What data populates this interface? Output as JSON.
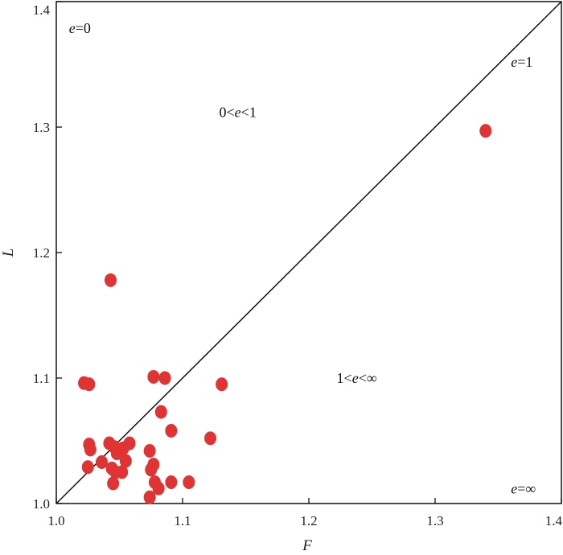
{
  "chart_data": {
    "type": "scatter",
    "title": "",
    "xlabel": "F",
    "ylabel": "L",
    "xlim": [
      1.0,
      1.4
    ],
    "ylim": [
      1.0,
      1.4
    ],
    "xticks": [
      "1.0",
      "1.1",
      "1.2",
      "1.3",
      "1.4"
    ],
    "yticks": [
      "1.0",
      "1.1",
      "1.2",
      "1.3",
      "1.4"
    ],
    "grid": false,
    "marker_color": "#e03434",
    "reference_line": {
      "label": "e=1",
      "from": [
        1.0,
        1.0
      ],
      "to": [
        1.4,
        1.4
      ]
    },
    "annotations": [
      {
        "id": "e0",
        "parts": [
          {
            "t": "e",
            "italic": true
          },
          {
            "t": "=0",
            "italic": false
          }
        ],
        "x": 1.01,
        "y": 1.375
      },
      {
        "id": "e1",
        "parts": [
          {
            "t": "e",
            "italic": true
          },
          {
            "t": "=1",
            "italic": false
          }
        ],
        "x": 1.36,
        "y": 1.348
      },
      {
        "id": "e01",
        "parts": [
          {
            "t": "0<",
            "italic": false
          },
          {
            "t": "e",
            "italic": true
          },
          {
            "t": "<1",
            "italic": false
          }
        ],
        "x": 1.129,
        "y": 1.308
      },
      {
        "id": "e1inf",
        "parts": [
          {
            "t": "1<",
            "italic": false
          },
          {
            "t": "e",
            "italic": true
          },
          {
            "t": "<∞",
            "italic": false
          }
        ],
        "x": 1.222,
        "y": 1.096
      },
      {
        "id": "einf",
        "parts": [
          {
            "t": "e",
            "italic": true
          },
          {
            "t": "=∞",
            "italic": false
          }
        ],
        "x": 1.36,
        "y": 1.008
      }
    ],
    "series": [
      {
        "points": [
          [
            1.022,
            1.096
          ],
          [
            1.026,
            1.095
          ],
          [
            1.043,
            1.178
          ],
          [
            1.077,
            1.101
          ],
          [
            1.086,
            1.1
          ],
          [
            1.131,
            1.095
          ],
          [
            1.34,
            1.297
          ],
          [
            1.083,
            1.073
          ],
          [
            1.091,
            1.058
          ],
          [
            1.122,
            1.052
          ],
          [
            1.026,
            1.047
          ],
          [
            1.027,
            1.043
          ],
          [
            1.025,
            1.029
          ],
          [
            1.036,
            1.033
          ],
          [
            1.042,
            1.048
          ],
          [
            1.046,
            1.045
          ],
          [
            1.048,
            1.04
          ],
          [
            1.053,
            1.044
          ],
          [
            1.058,
            1.048
          ],
          [
            1.055,
            1.034
          ],
          [
            1.044,
            1.028
          ],
          [
            1.047,
            1.025
          ],
          [
            1.052,
            1.025
          ],
          [
            1.045,
            1.016
          ],
          [
            1.074,
            1.042
          ],
          [
            1.077,
            1.031
          ],
          [
            1.075,
            1.027
          ],
          [
            1.078,
            1.017
          ],
          [
            1.081,
            1.012
          ],
          [
            1.091,
            1.017
          ],
          [
            1.105,
            1.017
          ],
          [
            1.074,
            1.005
          ]
        ]
      }
    ]
  }
}
